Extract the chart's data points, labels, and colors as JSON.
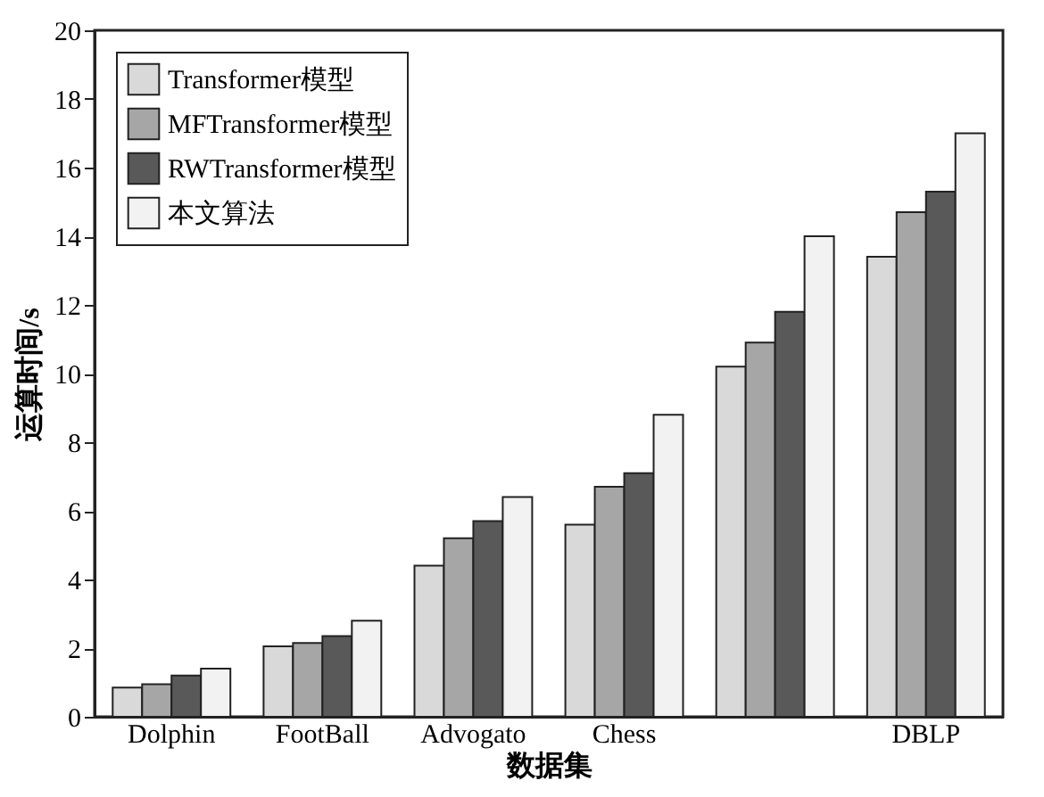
{
  "chart_data": {
    "type": "bar",
    "xlabel": "数据集",
    "ylabel": "运算时间/s",
    "categories": [
      "Dolphin",
      "FootBall",
      "Advogato",
      "Chess",
      null,
      "DBLP"
    ],
    "series": [
      {
        "name": "Transformer模型",
        "color": "#d9d9d9",
        "values": [
          0.85,
          2.05,
          4.4,
          5.6,
          10.2,
          13.4
        ]
      },
      {
        "name": "MFTransformer模型",
        "color": "#a6a6a6",
        "values": [
          0.95,
          2.15,
          5.2,
          6.7,
          10.9,
          14.7
        ]
      },
      {
        "name": "RWTransformer模型",
        "color": "#595959",
        "values": [
          1.2,
          2.35,
          5.7,
          7.1,
          11.8,
          15.3
        ]
      },
      {
        "name": "本文算法",
        "color": "#f2f2f2",
        "values": [
          1.4,
          2.8,
          6.4,
          8.8,
          14.0,
          17.0
        ]
      }
    ],
    "ylim": [
      0,
      20
    ],
    "yticks": [
      0,
      2,
      4,
      6,
      8,
      10,
      12,
      14,
      16,
      18,
      20
    ],
    "grid": false,
    "legend": "top left"
  }
}
